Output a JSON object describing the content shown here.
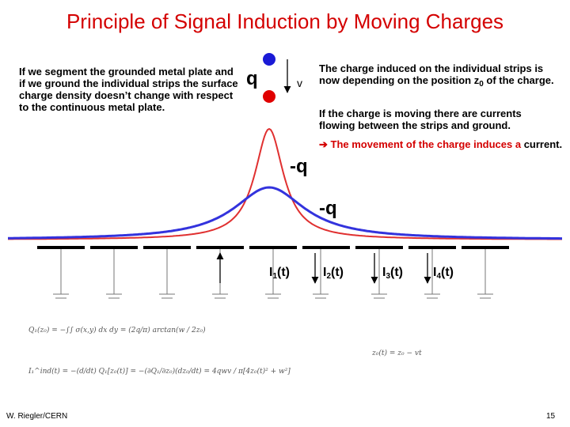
{
  "title": "Principle of Signal Induction by Moving Charges",
  "left_paragraph": "If we segment the grounded metal plate and if we ground the individual strips the surface charge density doesn’t change with respect to the continuous metal plate.",
  "right_paragraph_1_main": "The charge induced on the individual strips is now depending on the position z",
  "right_paragraph_1_sub": "0",
  "right_paragraph_1_end": " of the charge.",
  "right_paragraph_2": "If the charge is moving there are currents flowing between the strips and ground.",
  "right_paragraph_3_arrow": "➔",
  "right_paragraph_3_red": " The movement of the charge induces a",
  "right_paragraph_3_black": " current.",
  "labels": {
    "q": "q",
    "v": "v",
    "minus_q_1": "-q",
    "minus_q_2": "-q"
  },
  "currents": [
    {
      "base": "I",
      "sub": "1",
      "tail": "(t)"
    },
    {
      "base": "I",
      "sub": "2",
      "tail": "(t)"
    },
    {
      "base": "I",
      "sub": "3",
      "tail": "(t)"
    },
    {
      "base": "I",
      "sub": "4",
      "tail": "(t)"
    }
  ],
  "formulas": {
    "f1": "Q₁(z₀) = −∫∫ σ(x,y) dx dy = (2q/π) arctan(w / 2z₀)",
    "f2": "I₁^ind(t) = −(d/dt) Q₁[z₀(t)] = −(∂Q₁/∂z₀)(dz₀/dt) = 4qwv / π[4z₀(t)² + w²]",
    "f3": "z₀(t) = z₀ − vt"
  },
  "footer": {
    "author": "W. Riegler/CERN",
    "page": "15"
  },
  "colors": {
    "title_red": "#d40000",
    "charge_blue": "#1a1ad6",
    "charge_red": "#e00000",
    "curve_blue": "#3333dd"
  }
}
